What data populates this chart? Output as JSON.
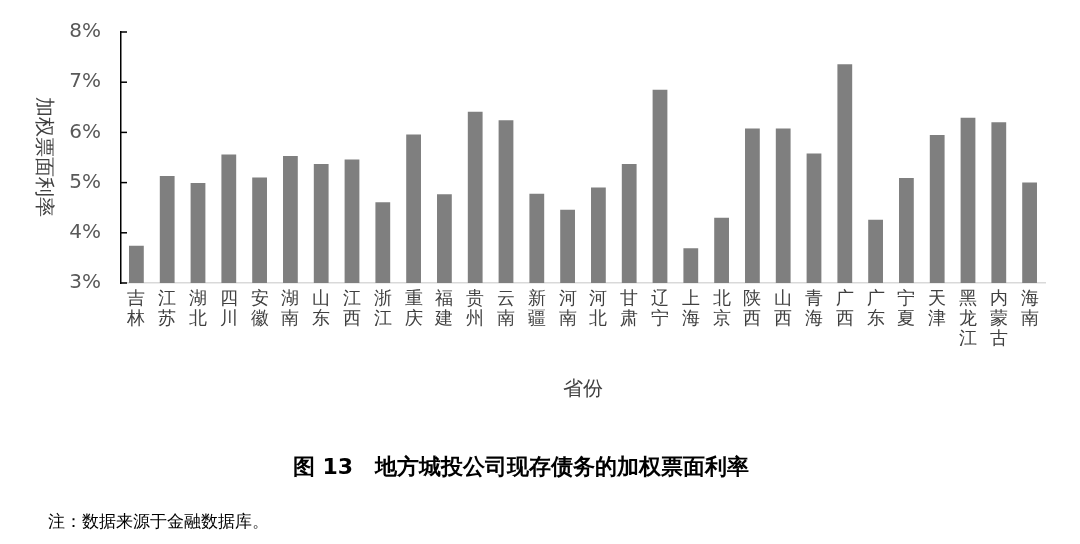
{
  "chart_data": {
    "type": "bar",
    "title": "图 13　地方城投公司现存债务的加权票面利率",
    "xlabel": "省份",
    "ylabel": "加权票面利率",
    "categories": [
      "吉林",
      "江苏",
      "湖北",
      "四川",
      "安徽",
      "湖南",
      "山东",
      "江西",
      "浙江",
      "重庆",
      "福建",
      "贵州",
      "云南",
      "新疆",
      "河南",
      "河北",
      "甘肃",
      "辽宁",
      "上海",
      "北京",
      "陕西",
      "山西",
      "青海",
      "广西",
      "广东",
      "宁夏",
      "天津",
      "黑龙江",
      "内蒙古",
      "海南"
    ],
    "values": [
      3.74,
      5.13,
      4.99,
      5.56,
      5.1,
      5.53,
      5.37,
      5.46,
      4.61,
      5.96,
      4.77,
      6.41,
      6.24,
      4.78,
      4.46,
      4.9,
      5.37,
      6.85,
      3.69,
      4.3,
      6.08,
      6.08,
      5.58,
      7.36,
      4.26,
      5.09,
      5.95,
      6.29,
      6.2,
      5.0
    ],
    "color": "#7f7f7f",
    "ylim": [
      3,
      8
    ],
    "yticks": [
      {
        "value": 3,
        "label": "3%"
      },
      {
        "value": 4,
        "label": "4%"
      },
      {
        "value": 5,
        "label": "5%"
      },
      {
        "value": 6,
        "label": "6%"
      },
      {
        "value": 7,
        "label": "7%"
      },
      {
        "value": 8,
        "label": "8%"
      }
    ],
    "grid": false,
    "legend": false,
    "annotations": [
      "注：数据来源于金融数据库。"
    ]
  }
}
